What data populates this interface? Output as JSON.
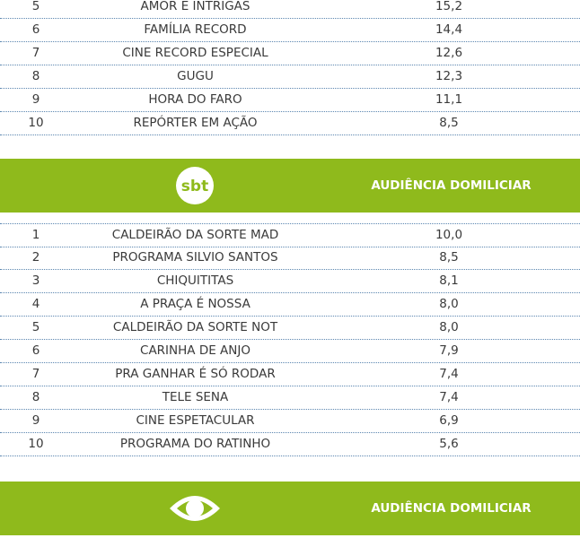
{
  "sections": [
    {
      "rows": [
        [
          5,
          "AMOR E INTRIGAS",
          "15,2"
        ],
        [
          6,
          "FAMÍLIA RECORD",
          "14,4"
        ],
        [
          7,
          "CINE RECORD ESPECIAL",
          "12,6"
        ],
        [
          8,
          "GUGU",
          "12,3"
        ],
        [
          9,
          "HORA DO FARO",
          "11,1"
        ],
        [
          10,
          "REPÓRTER EM AÇÃO",
          "8,5"
        ]
      ]
    },
    {
      "logo": "sbt",
      "header": "AUDIÊNCIA DOMILICIAR",
      "rows": [
        [
          1,
          "CALDEIRÃO DA SORTE MAD",
          "10,0"
        ],
        [
          2,
          "PROGRAMA SILVIO SANTOS",
          "8,5"
        ],
        [
          3,
          "CHIQUITITAS",
          "8,1"
        ],
        [
          4,
          "A PRAÇA É NOSSA",
          "8,0"
        ],
        [
          5,
          "CALDEIRÃO DA SORTE NOT",
          "8,0"
        ],
        [
          6,
          "CARINHA DE ANJO",
          "7,9"
        ],
        [
          7,
          "PRA GANHAR É SÓ RODAR",
          "7,4"
        ],
        [
          8,
          "TELE SENA",
          "7,4"
        ],
        [
          9,
          "CINE ESPETACULAR",
          "6,9"
        ],
        [
          10,
          "PROGRAMA DO RATINHO",
          "5,6"
        ]
      ]
    },
    {
      "header": "AUDIÊNCIA DOMILICIAR"
    }
  ]
}
